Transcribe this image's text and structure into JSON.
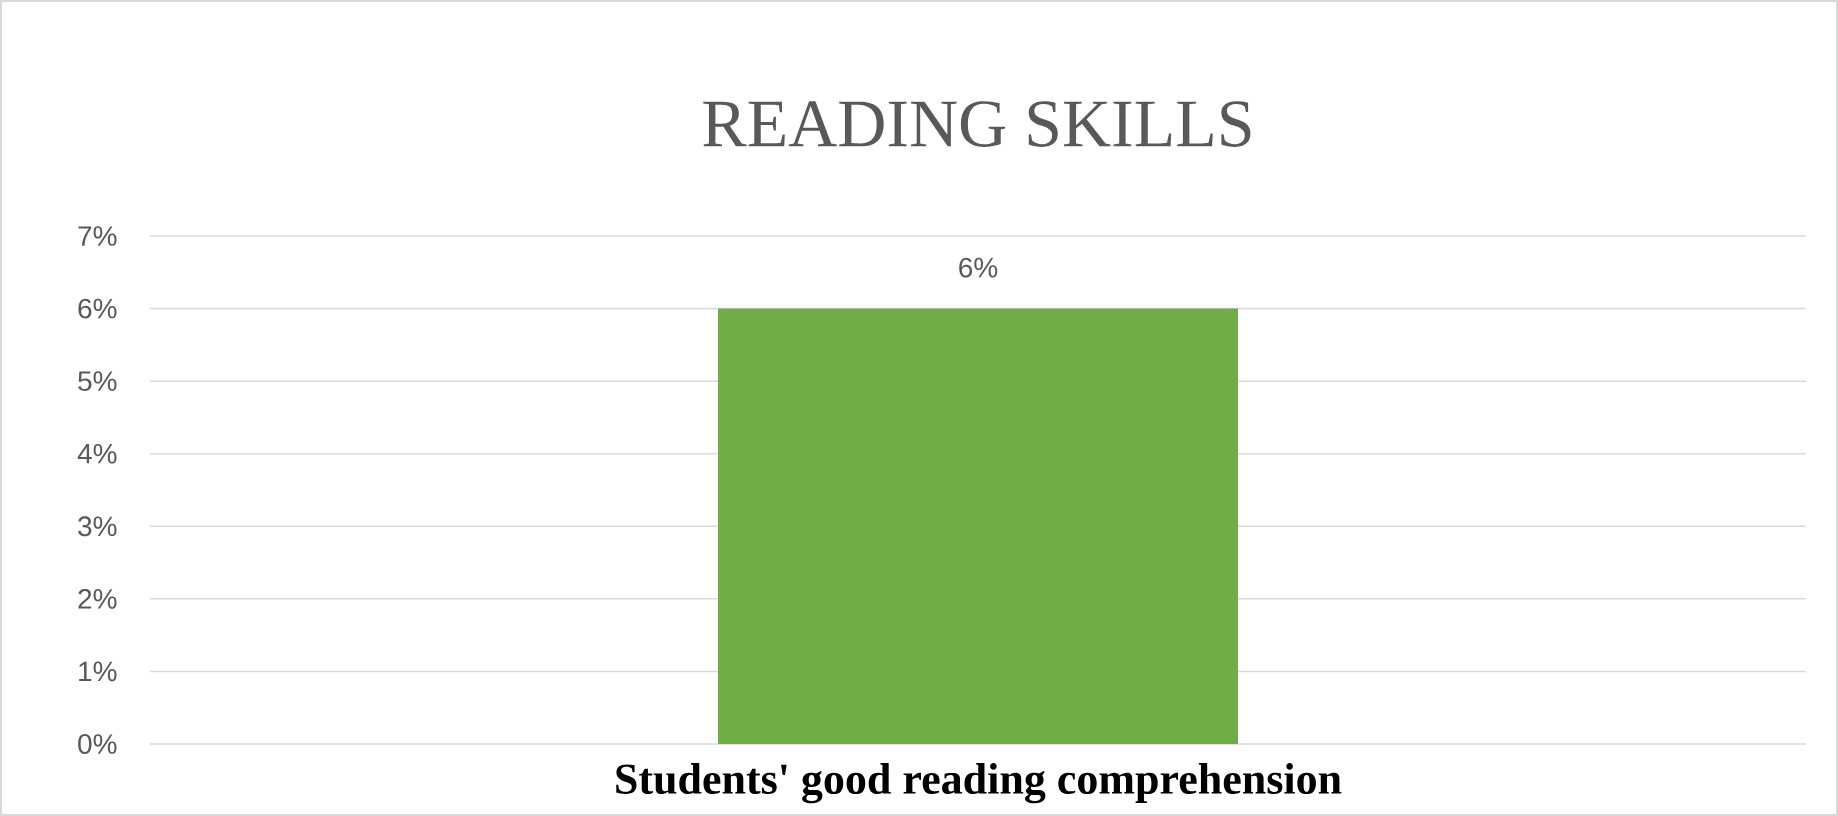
{
  "chart_data": {
    "type": "bar",
    "title": "READING SKILLS",
    "categories": [
      "Students' good reading comprehension"
    ],
    "values": [
      6
    ],
    "color": "#70ad47",
    "value_labels": [
      "6%"
    ],
    "ylim": [
      0,
      7
    ],
    "yticks": [
      {
        "value": 0,
        "label": "0%"
      },
      {
        "value": 1,
        "label": "1%"
      },
      {
        "value": 2,
        "label": "2%"
      },
      {
        "value": 3,
        "label": "3%"
      },
      {
        "value": 4,
        "label": "4%"
      },
      {
        "value": 5,
        "label": "5%"
      },
      {
        "value": 6,
        "label": "6%"
      },
      {
        "value": 7,
        "label": "7%"
      }
    ],
    "grid": "y"
  }
}
